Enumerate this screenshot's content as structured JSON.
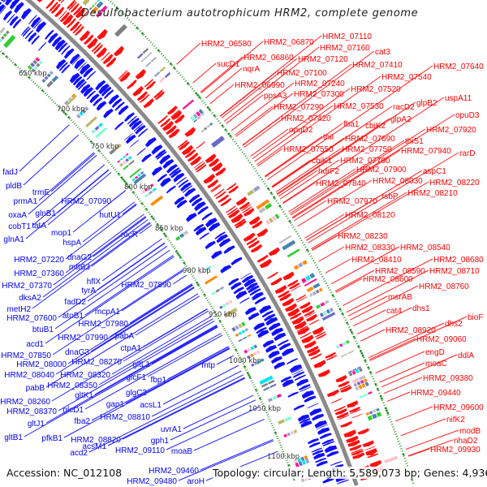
{
  "title": "Desulfobacterium autotrophicum HRM2, complete genome",
  "footer": {
    "accession": "Accession: NC_012108",
    "summary": "Topology: circular; Length: 5,589,073 bp; Genes: 4,936"
  },
  "colors": {
    "forward_strand": "#ff0000",
    "reverse_strand": "#0000ff",
    "backbone": "#888888",
    "tick_marks": "#228b22"
  },
  "ticks": [
    "650 kbp",
    "700 kbp",
    "750 kbp",
    "800 kbp",
    "850 kbp",
    "900 kbp",
    "950 kbp",
    "1000 kbp",
    "1050 kbp",
    "1100 kbp"
  ],
  "forward_labels": [
    "HRM2_06580",
    "HRM2_06870",
    "HRM2_07110",
    "HRM2_07160",
    "HRM2_06860",
    "HRM2_07120",
    "cat3",
    "sucD1",
    "nqrA",
    "HRM2_07100",
    "HRM2_07410",
    "HRM2_07640",
    "HRM2_06990",
    "HRM2_07240",
    "HRM2_07540",
    "ppsA3",
    "HRM2_07300",
    "HRM2_07520",
    "uspA11",
    "glpB2",
    "HRM2_07290",
    "HRM2_07530",
    "racD2",
    "HRM2_07420",
    "glpA2",
    "opuD3",
    "opuD2",
    "fba1",
    "cbiK2",
    "HRM2_07920",
    "thiI",
    "HRM2_07690",
    "thiS1",
    "HRM2_07550",
    "HRM2_07750",
    "HRM2_07940",
    "rarD",
    "cbiK1",
    "HRM2_07790",
    "hdrF2",
    "HRM2_07900",
    "aspC1",
    "HRM2_07840",
    "HRM2_08030",
    "HRM2_08220",
    "HRM2_07970",
    "rsbP",
    "HRM2_08210",
    "HRM2_08120",
    "HRM2_08230",
    "HRM2_08330",
    "HRM2_08540",
    "HRM2_08410",
    "HRM2_08680",
    "HRM2_08590",
    "HRM2_08710",
    "HRM2_08600",
    "HRM2_08760",
    "msrAB",
    "cat4",
    "dhs1",
    "bioF",
    "dhs2",
    "HRM2_08920",
    "HRM2_09060",
    "engD",
    "ddlA",
    "moaC",
    "HRM2_09380",
    "HRM2_09440",
    "HRM2_09600",
    "nifK2",
    "modB",
    "nhaD2",
    "HRM2_09930"
  ],
  "reverse_labels": [
    "fadJ",
    "pldB",
    "trmE",
    "prmA1",
    "oxaA",
    "glnB1",
    "cobT1",
    "tatA",
    "glnA1",
    "mop1",
    "HRM2_07090",
    "hutU1",
    "hspA",
    "rocR",
    "HRM2_07220",
    "dnaG2",
    "mttB3",
    "HRM2_07360",
    "hflX",
    "HRM2_07370",
    "tyrA",
    "HRM2_07890",
    "dksA2",
    "fadD2",
    "metH2",
    "HRM2_07600",
    "atoB1",
    "mcpA1",
    "btuB1",
    "HRM2_07980",
    "HRM2_07990",
    "pabA",
    "acd1",
    "ctpA1",
    "HRM2_07850",
    "dnaG3",
    "HRM2_08000",
    "HRM2_08270",
    "HRM2_08040",
    "HRM2_08320",
    "gltL1",
    "glcF1",
    "mtp",
    "fbp1",
    "pabB",
    "HRM2_08350",
    "glgC2",
    "HRM2_08260",
    "gltK1",
    "gap1",
    "acsL1",
    "HRM2_08370",
    "glcD1",
    "gltJ1",
    "fba2",
    "HRM2_08810",
    "uvrA1",
    "gltB1",
    "pfkB1",
    "HRM2_08820",
    "acsM1",
    "gph1",
    "acd2",
    "HRM2_09110",
    "moaB",
    "HRM2_09460",
    "HRM2_09480",
    "aroH"
  ]
}
